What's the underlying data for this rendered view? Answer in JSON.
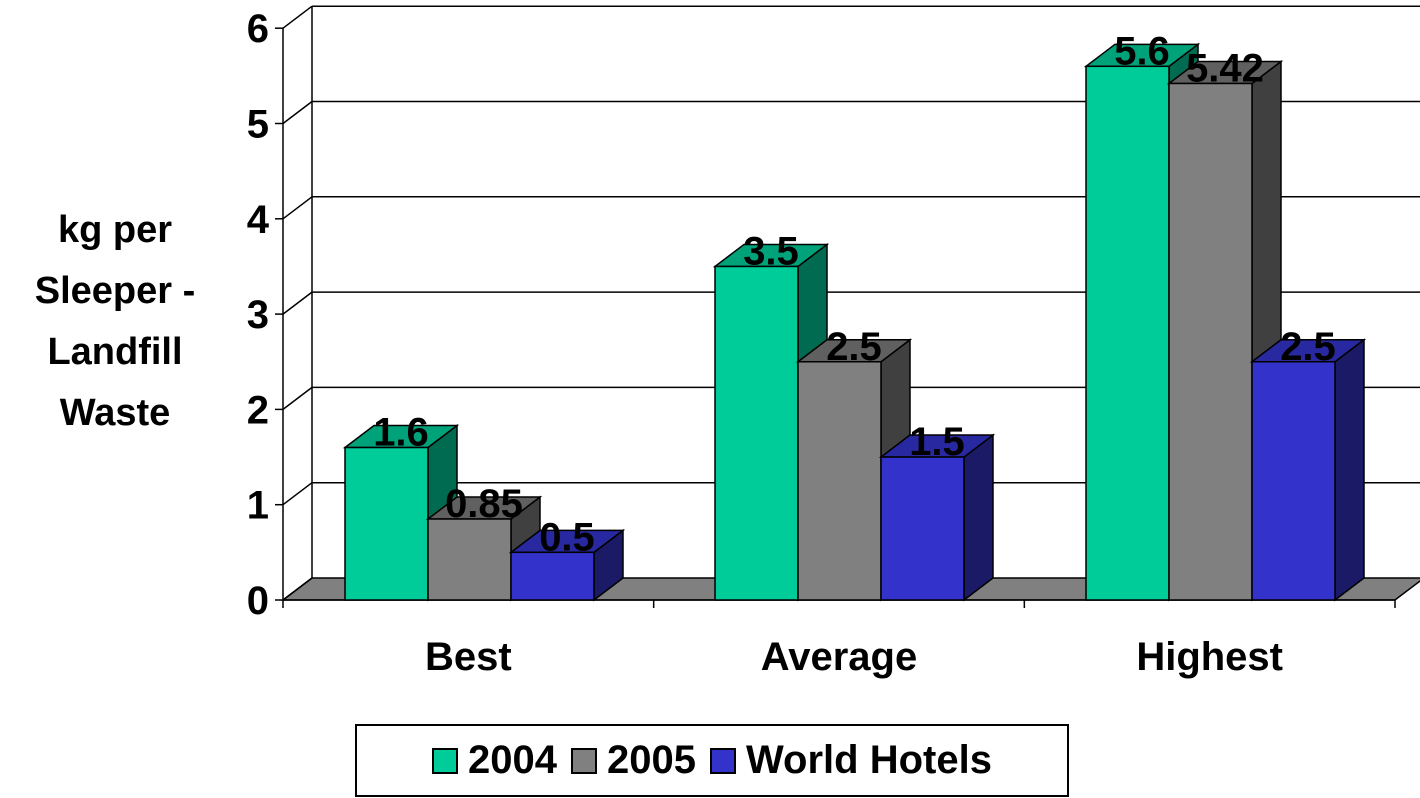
{
  "chart_data": {
    "type": "bar",
    "style": "3d-clustered-column",
    "title": "",
    "ylabel_lines": [
      "kg per",
      "Sleeper -",
      "Landfill",
      "Waste"
    ],
    "xlabel": "",
    "categories": [
      "Best",
      "Average",
      "Highest"
    ],
    "series": [
      {
        "name": "2004",
        "values": [
          1.6,
          3.5,
          5.6
        ],
        "labels": [
          "1.6",
          "3.5",
          "5.6"
        ],
        "color": "#00CC99",
        "side_color": "#006B50",
        "top_color": "#00A27A"
      },
      {
        "name": "2005",
        "values": [
          0.85,
          2.5,
          5.42
        ],
        "labels": [
          "0.85",
          "2.5",
          "5.42"
        ],
        "color": "#808080",
        "side_color": "#404040",
        "top_color": "#606060"
      },
      {
        "name": "World Hotels",
        "values": [
          0.5,
          1.5,
          2.5
        ],
        "labels": [
          "0.5",
          "1.5",
          "2.5"
        ],
        "color": "#3333CC",
        "side_color": "#1A1A66",
        "top_color": "#2828A0"
      }
    ],
    "yticks": [
      "0",
      "1",
      "2",
      "3",
      "4",
      "5",
      "6"
    ],
    "ylim": [
      0,
      6
    ],
    "grid": true,
    "legend_position": "bottom",
    "floor_color": "#808080"
  }
}
